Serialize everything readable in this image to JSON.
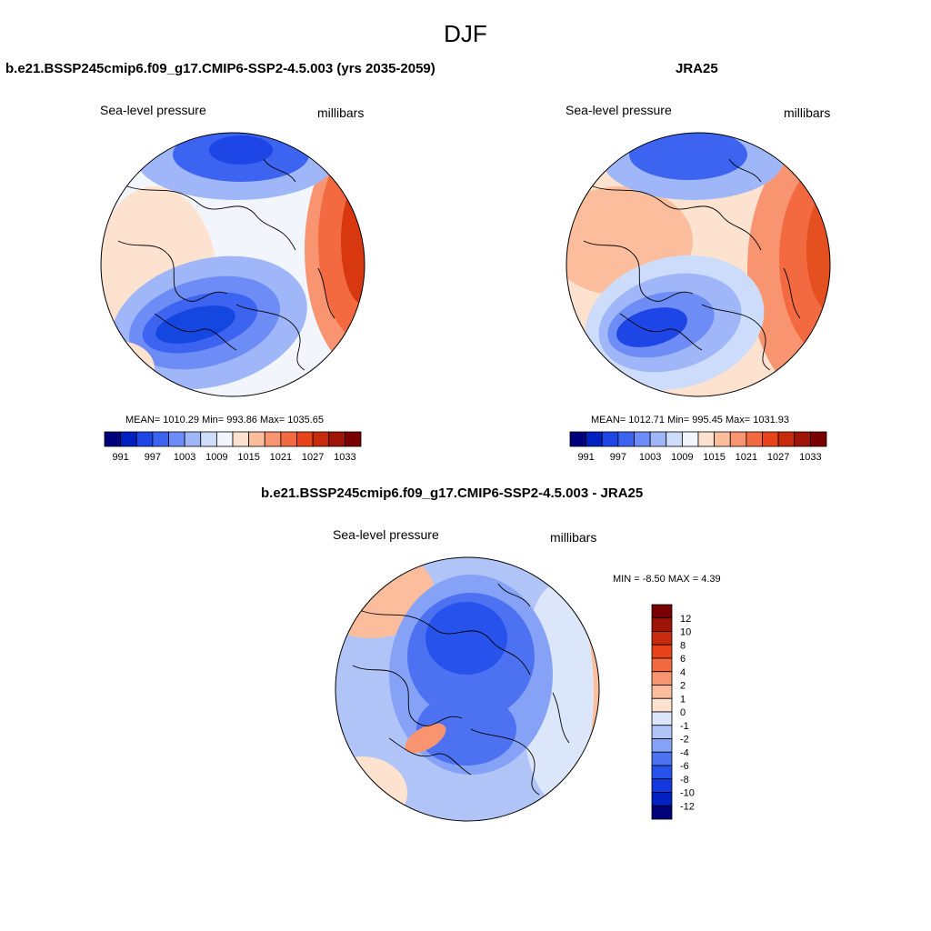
{
  "page_title": "DJF",
  "chart_data": [
    {
      "type": "heatmap",
      "title": "b.e21.BSSP245cmip6.f09_g17.CMIP6-SSP2-4.5.003 (yrs 2035-2059)",
      "left_label": "Sea-level pressure",
      "right_label": "millibars",
      "projection": "north polar stereographic",
      "stats_text": "MEAN= 1010.29  Min= 993.86  Max= 1035.65",
      "mean": 1010.29,
      "min": 993.86,
      "max": 1035.65,
      "colorbar": {
        "orientation": "horizontal",
        "levels": [
          991,
          994,
          997,
          1000,
          1003,
          1006,
          1009,
          1012,
          1015,
          1018,
          1021,
          1024,
          1027,
          1030,
          1033
        ],
        "tick_labels": [
          "991",
          "997",
          "1003",
          "1009",
          "1015",
          "1021",
          "1027",
          "1033"
        ],
        "colors": [
          "#00007a",
          "#0020c0",
          "#1e46e6",
          "#3c64f0",
          "#6e8cf5",
          "#9fb6f8",
          "#cddcfa",
          "#f2f6fc",
          "#fde2d0",
          "#fbbd9c",
          "#f89470",
          "#f46a40",
          "#e8431a",
          "#c82a0c",
          "#9e1406",
          "#780000"
        ]
      },
      "features": [
        {
          "name": "high-pressure",
          "color": "#d8380f",
          "region": "north-pacific-east"
        },
        {
          "name": "low-pressure",
          "color": "#1446e0",
          "region": "north-atlantic"
        },
        {
          "name": "low-pressure",
          "color": "#2a55ea",
          "region": "aleutian-top"
        }
      ]
    },
    {
      "type": "heatmap",
      "title": "JRA25",
      "left_label": "Sea-level pressure",
      "right_label": "millibars",
      "projection": "north polar stereographic",
      "stats_text": "MEAN= 1012.71  Min= 995.45  Max= 1031.93",
      "mean": 1012.71,
      "min": 995.45,
      "max": 1031.93,
      "colorbar": {
        "orientation": "horizontal",
        "levels": [
          991,
          994,
          997,
          1000,
          1003,
          1006,
          1009,
          1012,
          1015,
          1018,
          1021,
          1024,
          1027,
          1030,
          1033
        ],
        "tick_labels": [
          "991",
          "997",
          "1003",
          "1009",
          "1015",
          "1021",
          "1027",
          "1033"
        ],
        "colors": [
          "#00007a",
          "#0020c0",
          "#1e46e6",
          "#3c64f0",
          "#6e8cf5",
          "#9fb6f8",
          "#cddcfa",
          "#f2f6fc",
          "#fde2d0",
          "#fbbd9c",
          "#f89470",
          "#f46a40",
          "#e8431a",
          "#c82a0c",
          "#9e1406",
          "#780000"
        ]
      },
      "features": [
        {
          "name": "high-pressure",
          "color": "#e4501f",
          "region": "north-pacific-east"
        },
        {
          "name": "low-pressure",
          "color": "#1e46e6",
          "region": "north-atlantic"
        }
      ]
    },
    {
      "type": "heatmap",
      "title": "b.e21.BSSP245cmip6.f09_g17.CMIP6-SSP2-4.5.003 - JRA25",
      "left_label": "Sea-level pressure",
      "right_label": "millibars",
      "projection": "north polar stereographic",
      "stats_text": "MIN =  -8.50 MAX =   4.39",
      "min": -8.5,
      "max": 4.39,
      "colorbar": {
        "orientation": "vertical",
        "levels": [
          -12,
          -10,
          -8,
          -6,
          -4,
          -2,
          -1,
          0,
          1,
          2,
          4,
          6,
          8,
          10,
          12
        ],
        "tick_labels": [
          "12",
          "10",
          "8",
          "6",
          "4",
          "2",
          "1",
          "0",
          "-1",
          "-2",
          "-4",
          "-6",
          "-8",
          "-10",
          "-12"
        ],
        "colors": [
          "#00007a",
          "#0020c0",
          "#1438e0",
          "#2852ec",
          "#4c72f2",
          "#86a2f6",
          "#b0c4f8",
          "#dce6fb",
          "#fde2d0",
          "#fbbd9c",
          "#f89470",
          "#f46a40",
          "#e8431a",
          "#c82a0c",
          "#9e1406",
          "#780000"
        ]
      }
    }
  ]
}
